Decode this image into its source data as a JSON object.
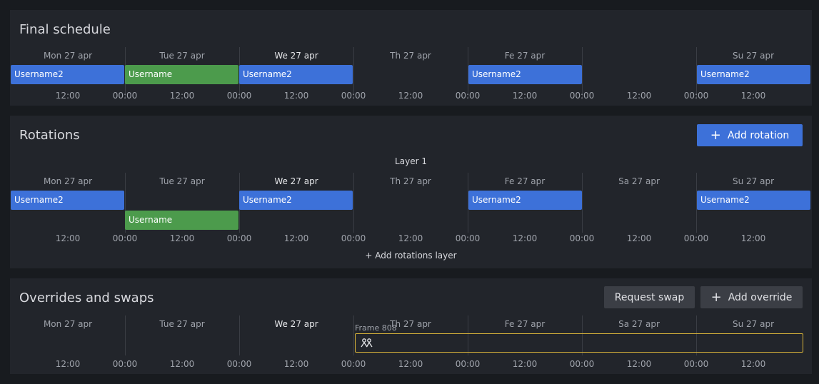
{
  "final_schedule": {
    "title": "Final schedule",
    "days": [
      "Mon 27 apr",
      "Tue 27 apr",
      "We 27 apr",
      "Th 27 apr",
      "Fe 27 apr",
      "",
      "Su 27 apr"
    ],
    "slots": [
      "Username2",
      "Username",
      "Username2",
      "Username2",
      "Username2"
    ],
    "ticks": [
      "12:00",
      "00:00",
      "12:00",
      "00:00",
      "12:00",
      "00:00",
      "12:00",
      "00:00",
      "12:00",
      "00:00",
      "12:00",
      "00:00",
      "12:00"
    ]
  },
  "rotations": {
    "title": "Rotations",
    "add_button": "Add rotation",
    "layer_label": "Layer 1",
    "add_layer": "+ Add rotations layer",
    "days": [
      "Mon 27 apr",
      "Tue 27 apr",
      "We 27 apr",
      "Th 27 apr",
      "Fe 27 apr",
      "Sa 27 apr",
      "Su 27 apr"
    ],
    "slots": [
      "Username2",
      "Username",
      "Username2",
      "Username2",
      "Username2"
    ],
    "ticks": [
      "12:00",
      "00:00",
      "12:00",
      "00:00",
      "12:00",
      "00:00",
      "12:00",
      "00:00",
      "12:00",
      "00:00",
      "12:00",
      "00:00",
      "12:00"
    ]
  },
  "overrides": {
    "title": "Overrides and swaps",
    "request_swap": "Request swap",
    "add_override": "Add override",
    "frame_label": "Frame 808",
    "days": [
      "Mon 27 apr",
      "Tue 27 apr",
      "We 27 apr",
      "Th 27 apr",
      "Fe 27 apr",
      "Sa 27 apr",
      "Su 27 apr"
    ],
    "ticks": [
      "12:00",
      "00:00",
      "12:00",
      "00:00",
      "12:00",
      "00:00",
      "12:00",
      "00:00",
      "12:00",
      "00:00",
      "12:00",
      "00:00",
      "12:00"
    ]
  },
  "colors": {
    "primary": "#3d71d9",
    "green": "#4c9b4c",
    "frame": "#d9b43a"
  },
  "icons": {
    "plus": "plus-icon",
    "swap": "users-swap-icon"
  }
}
